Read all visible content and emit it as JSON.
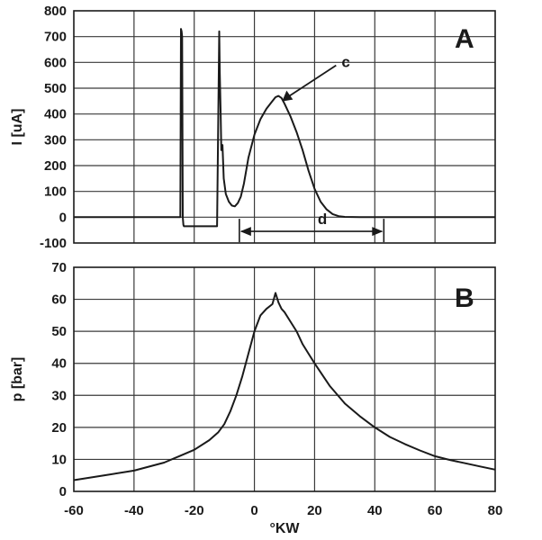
{
  "chart_data": [
    {
      "panel": "A",
      "type": "line",
      "ylabel": "I [uA]",
      "xlim": [
        -60,
        80
      ],
      "ylim": [
        -100,
        800
      ],
      "x_ticks": [
        -60,
        -40,
        -20,
        0,
        20,
        40,
        60,
        80
      ],
      "y_ticks": [
        -100,
        0,
        100,
        200,
        300,
        400,
        500,
        600,
        700,
        800
      ],
      "grid": true,
      "series": [
        {
          "x": [
            -60,
            -24.6,
            -24.4,
            -24.2,
            -24.0,
            -23.8,
            -23.6,
            -23.4,
            -12.6,
            -12.4,
            -11.7,
            -11.5,
            -11.2,
            -11.0,
            -10.6,
            -10.2,
            -9.5,
            -8.5,
            -7.5,
            -6.5,
            -5.5,
            -4.5,
            -3.5,
            -2,
            0,
            2,
            4,
            6,
            7,
            8,
            9,
            10,
            12,
            14,
            16,
            18,
            20,
            22,
            24,
            26,
            28,
            30,
            35,
            40,
            80
          ],
          "y": [
            0,
            0,
            730,
            720,
            700,
            0,
            -30,
            -35,
            -35,
            -35,
            720,
            560,
            400,
            260,
            280,
            150,
            90,
            60,
            45,
            42,
            55,
            80,
            130,
            230,
            320,
            380,
            420,
            450,
            465,
            470,
            462,
            440,
            390,
            330,
            260,
            180,
            110,
            60,
            30,
            12,
            4,
            1,
            0,
            0,
            0
          ]
        }
      ],
      "annotations": [
        {
          "text": "c",
          "type": "arrow",
          "at": [
            8,
            470
          ]
        },
        {
          "text": "d",
          "type": "span",
          "from": -5,
          "to": 43,
          "y": -55
        }
      ]
    },
    {
      "panel": "B",
      "type": "line",
      "xlabel": "°KW",
      "ylabel": "p [bar]",
      "xlim": [
        -60,
        80
      ],
      "ylim": [
        0,
        70
      ],
      "x_ticks": [
        -60,
        -40,
        -20,
        0,
        20,
        40,
        60,
        80
      ],
      "y_ticks": [
        0,
        10,
        20,
        30,
        40,
        50,
        60,
        70
      ],
      "grid": true,
      "series": [
        {
          "x": [
            -60,
            -50,
            -40,
            -30,
            -25,
            -20,
            -15,
            -12,
            -10,
            -8,
            -6,
            -4,
            -2,
            0,
            2,
            4,
            6,
            7,
            8,
            9,
            10,
            12,
            14,
            16,
            18,
            20,
            25,
            30,
            35,
            40,
            45,
            50,
            55,
            60,
            65,
            70,
            75,
            80
          ],
          "y": [
            3.5,
            5,
            6.5,
            9,
            11,
            13,
            16,
            18.5,
            21,
            25,
            30,
            36,
            43,
            50,
            55,
            57,
            58.5,
            62,
            59,
            57,
            56,
            53,
            50,
            46,
            43,
            40,
            33,
            27.5,
            23.5,
            20,
            17,
            14.8,
            12.8,
            11,
            9.8,
            8.8,
            7.8,
            6.8
          ]
        }
      ]
    }
  ]
}
